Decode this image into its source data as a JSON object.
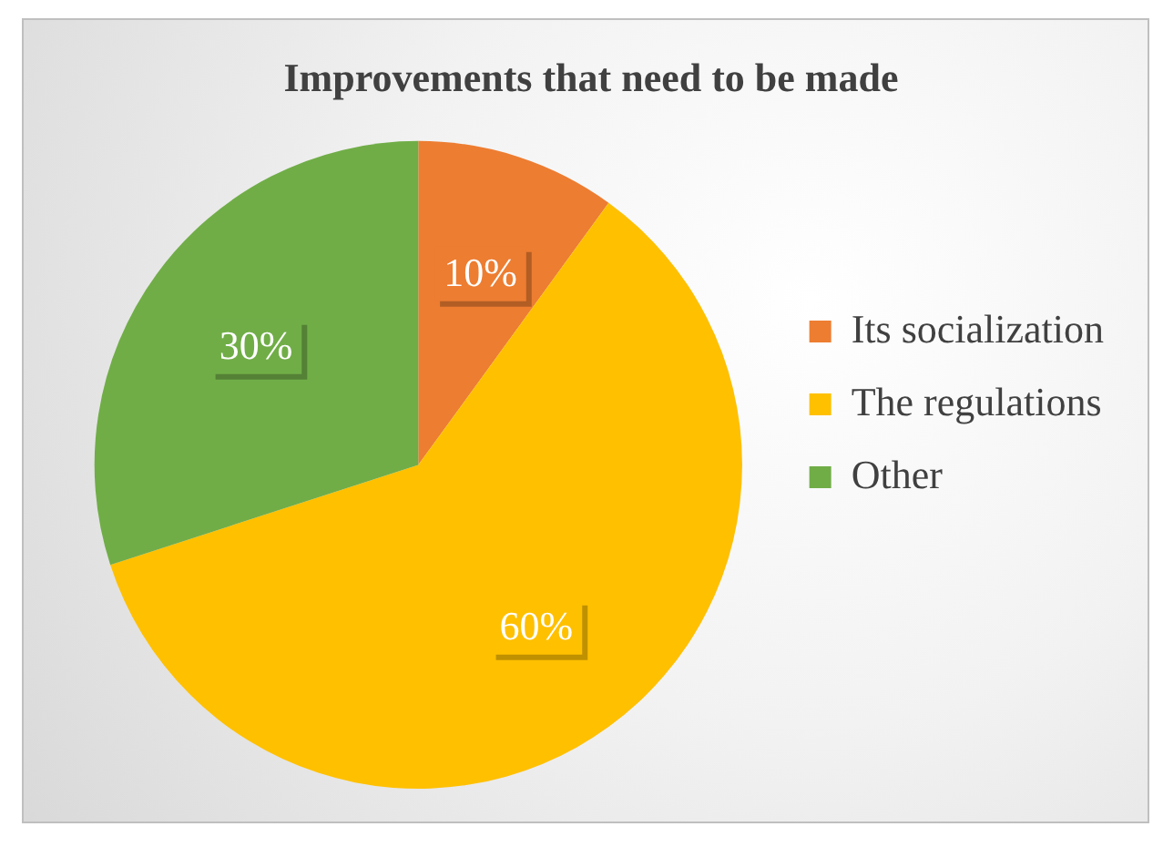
{
  "chart_data": {
    "type": "pie",
    "title": "Improvements that need to be made",
    "categories": [
      "Its socialization",
      "The regulations",
      "Other"
    ],
    "values": [
      10,
      60,
      30
    ],
    "colors": [
      "#ed7d31",
      "#ffc000",
      "#70ad47"
    ],
    "value_labels": [
      "10%",
      "60%",
      "30%"
    ],
    "legend": "right"
  }
}
